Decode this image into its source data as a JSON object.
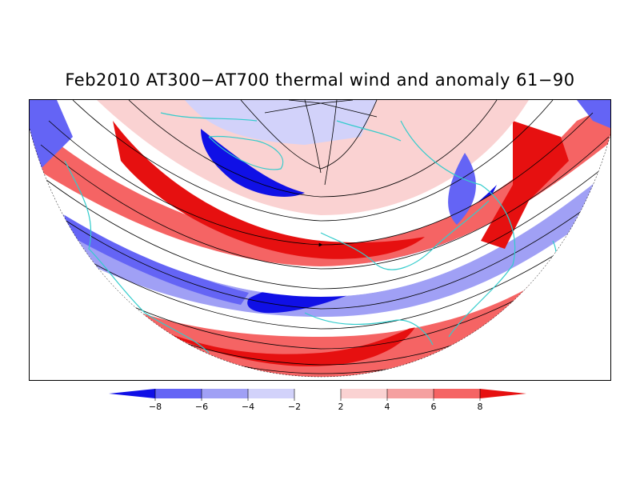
{
  "title": "Feb2010 AT300−AT700 thermal wind and anomaly 61−90",
  "colorbar": {
    "ticks": [
      "−8",
      "−6",
      "−4",
      "−2",
      "2",
      "4",
      "6",
      "8"
    ],
    "bin_colors": [
      "#1010e6",
      "#6464f5",
      "#a0a0f5",
      "#d2d2fa",
      "#ffffff",
      "#fad2d2",
      "#f5a0a0",
      "#f56464",
      "#e61010"
    ]
  },
  "colors": {
    "strong_negative": "#1010e6",
    "negative": "#6464f5",
    "weak_negative": "#a0a0f5",
    "slight_negative": "#d2d2fa",
    "neutral": "#ffffff",
    "slight_positive": "#fad2d2",
    "weak_positive": "#f5a0a0",
    "positive": "#f56464",
    "strong_positive": "#e61010",
    "coastline": "#33cccc",
    "streamline": "#000000"
  },
  "map": {
    "projection": "polar stereographic (northern hemisphere)",
    "layers": [
      "anomaly shading",
      "thermal wind streamlines",
      "coastlines"
    ]
  }
}
